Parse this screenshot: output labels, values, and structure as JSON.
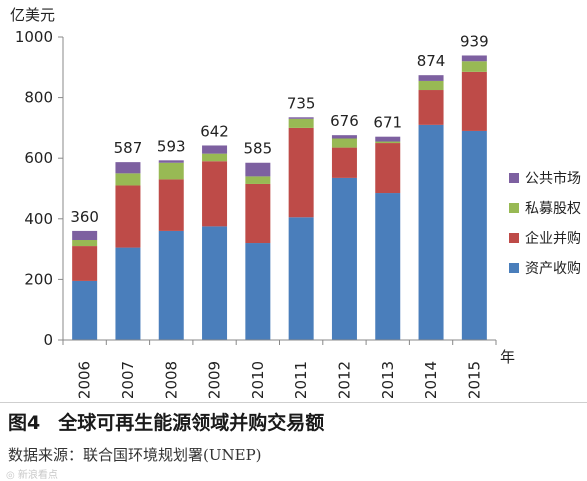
{
  "chart_data": {
    "type": "bar",
    "stacked": true,
    "ylabel": "亿美元",
    "xlabel": "年",
    "ylim": [
      0,
      1000
    ],
    "yticks": [
      0,
      200,
      400,
      600,
      800,
      1000
    ],
    "categories": [
      "2006",
      "2007",
      "2008",
      "2009",
      "2010",
      "2011",
      "2012",
      "2013",
      "2014",
      "2015"
    ],
    "totals": [
      360,
      587,
      593,
      642,
      585,
      735,
      676,
      671,
      874,
      939
    ],
    "series": [
      {
        "name": "资产收购",
        "color": "#4a7ebb",
        "values": [
          195,
          305,
          360,
          375,
          320,
          405,
          535,
          485,
          710,
          690
        ]
      },
      {
        "name": "企业并购",
        "color": "#be4b48",
        "values": [
          115,
          205,
          170,
          215,
          195,
          295,
          100,
          165,
          115,
          195
        ]
      },
      {
        "name": "私募股权",
        "color": "#98b954",
        "values": [
          20,
          40,
          55,
          25,
          25,
          30,
          30,
          5,
          30,
          35
        ]
      },
      {
        "name": "公共市场",
        "color": "#7d60a0",
        "values": [
          30,
          37,
          8,
          27,
          45,
          5,
          11,
          16,
          19,
          19
        ]
      }
    ],
    "legend_position": "right",
    "grid": false
  },
  "caption": {
    "figure": "图4",
    "title": "全球可再生能源领域并购交易额"
  },
  "source": "数据来源：联合国环境规划署(UNEP)",
  "watermark": "◎ 新浪看点"
}
